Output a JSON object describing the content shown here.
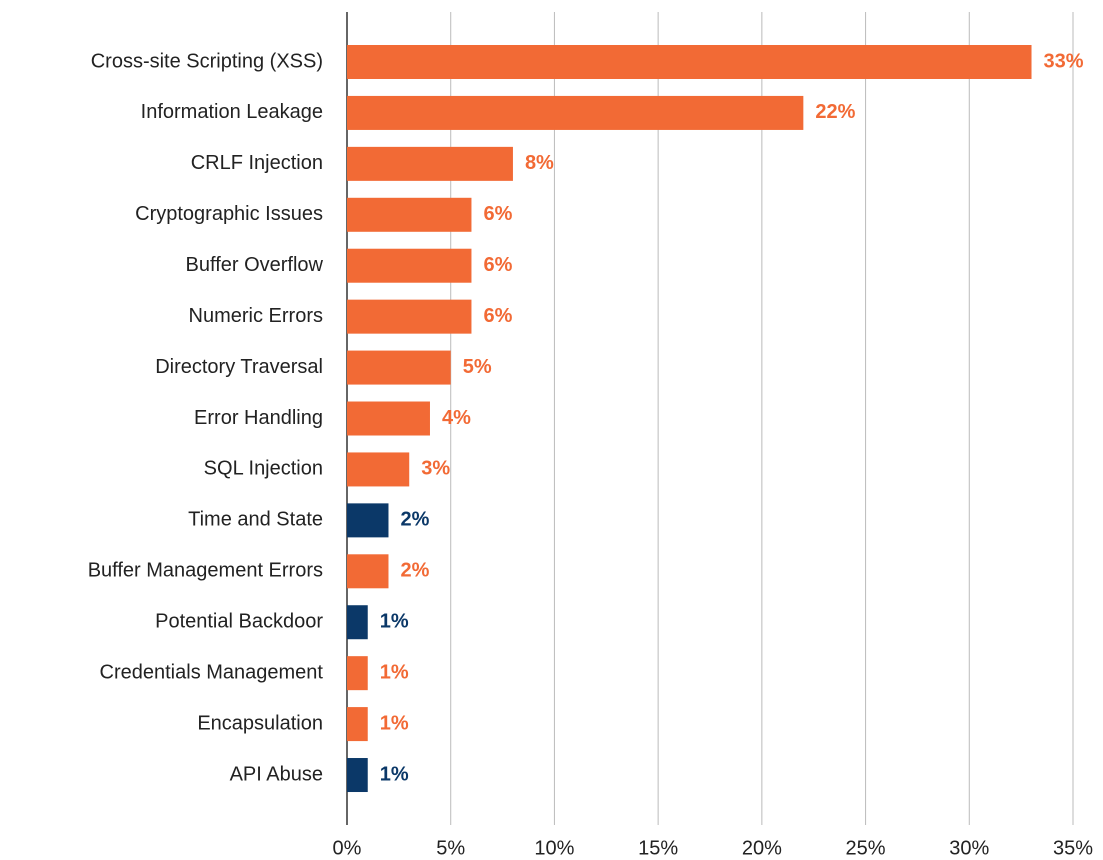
{
  "chart_data": {
    "type": "bar",
    "orientation": "horizontal",
    "categories": [
      "Cross-site Scripting (XSS)",
      "Information Leakage",
      "CRLF Injection",
      "Cryptographic Issues",
      "Buffer Overflow",
      "Numeric Errors",
      "Directory Traversal",
      "Error Handling",
      "SQL Injection",
      "Time and State",
      "Buffer Management Errors",
      "Potential Backdoor",
      "Credentials Management",
      "Encapsulation",
      "API Abuse"
    ],
    "values": [
      33,
      22,
      8,
      6,
      6,
      6,
      5,
      4,
      3,
      2,
      2,
      1,
      1,
      1,
      1
    ],
    "value_labels": [
      "33%",
      "22%",
      "8%",
      "6%",
      "6%",
      "6%",
      "5%",
      "4%",
      "3%",
      "2%",
      "2%",
      "1%",
      "1%",
      "1%",
      "1%"
    ],
    "colors": [
      "#f26a35",
      "#f26a35",
      "#f26a35",
      "#f26a35",
      "#f26a35",
      "#f26a35",
      "#f26a35",
      "#f26a35",
      "#f26a35",
      "#0b3868",
      "#f26a35",
      "#0b3868",
      "#f26a35",
      "#f26a35",
      "#0b3868"
    ],
    "xlim": [
      0,
      35
    ],
    "xticks": [
      {
        "value": 0,
        "label": "0%"
      },
      {
        "value": 5,
        "label": "5%"
      },
      {
        "value": 10,
        "label": "10%"
      },
      {
        "value": 15,
        "label": "15%"
      },
      {
        "value": 20,
        "label": "20%"
      },
      {
        "value": 25,
        "label": "25%"
      },
      {
        "value": 30,
        "label": "30%"
      },
      {
        "value": 35,
        "label": "35%"
      }
    ],
    "grid": true
  }
}
